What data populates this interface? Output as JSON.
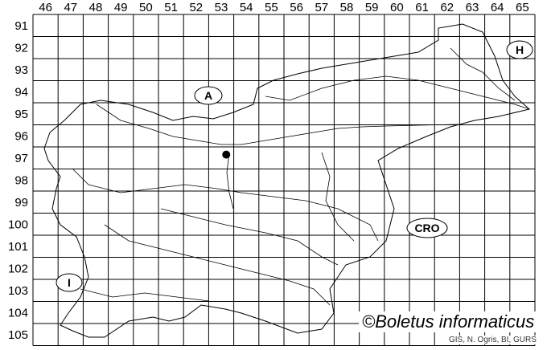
{
  "map": {
    "column_labels": [
      "46",
      "47",
      "48",
      "49",
      "50",
      "51",
      "52",
      "53",
      "54",
      "55",
      "56",
      "57",
      "58",
      "59",
      "60",
      "61",
      "62",
      "63",
      "64",
      "65"
    ],
    "row_labels": [
      "91",
      "92",
      "93",
      "94",
      "95",
      "96",
      "97",
      "98",
      "99",
      "100",
      "101",
      "102",
      "103",
      "104",
      "105"
    ],
    "neighbour_labels": [
      {
        "id": "austria",
        "text": "A"
      },
      {
        "id": "hungary",
        "text": "H"
      },
      {
        "id": "croatia",
        "text": "CRO"
      },
      {
        "id": "italy",
        "text": "I"
      }
    ],
    "record_marker": {
      "column": "53",
      "row": "97"
    },
    "line_color": "#000000"
  },
  "credit": "©Boletus informaticus",
  "source": "GIS, N. Ogris, BI, GURS"
}
